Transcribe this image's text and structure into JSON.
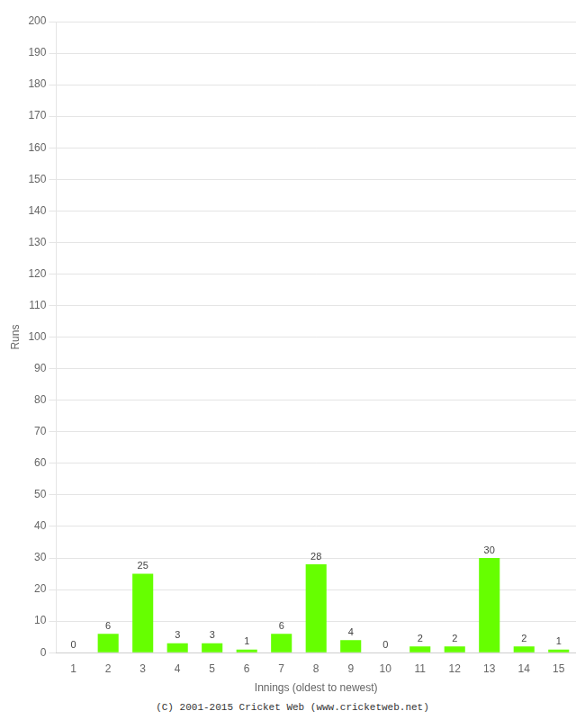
{
  "chart_data": {
    "type": "bar",
    "xlabel": "Innings (oldest to newest)",
    "ylabel": "Runs",
    "categories": [
      1,
      2,
      3,
      4,
      5,
      6,
      7,
      8,
      9,
      10,
      11,
      12,
      13,
      14,
      15
    ],
    "values": [
      0,
      6,
      25,
      3,
      3,
      1,
      6,
      28,
      4,
      0,
      2,
      2,
      30,
      2,
      1
    ],
    "color": "#66ff00",
    "ylim": [
      0,
      200
    ],
    "yticks": [
      0,
      10,
      20,
      30,
      40,
      50,
      60,
      70,
      80,
      90,
      100,
      110,
      120,
      130,
      140,
      150,
      160,
      170,
      180,
      190,
      200
    ],
    "grid": true,
    "data_labels": true,
    "annotations": [
      "(C) 2001-2015 Cricket Web (www.cricketweb.net)"
    ]
  }
}
